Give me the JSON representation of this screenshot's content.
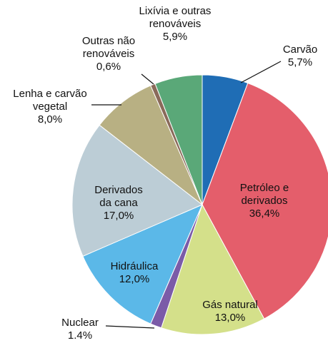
{
  "chart_data": {
    "type": "pie",
    "categories": [
      [
        "Carvão"
      ],
      [
        "Petróleo e",
        "derivados"
      ],
      [
        "Gás natural"
      ],
      [
        "Nuclear"
      ],
      [
        "Hidráulica"
      ],
      [
        "Derivados",
        "da cana"
      ],
      [
        "Lenha e carvão",
        "vegetal"
      ],
      [
        "Outras não",
        "renováveis"
      ],
      [
        "Lixívia e outras",
        "renováveis"
      ]
    ],
    "values": [
      5.7,
      36.4,
      13.0,
      1.4,
      12.0,
      17.0,
      8.0,
      0.6,
      5.9
    ],
    "value_labels": [
      "5,7%",
      "36,4%",
      "13,0%",
      "1.4%",
      "12,0%",
      "17,0%",
      "8,0%",
      "0,6%",
      "5,9%"
    ],
    "colors": [
      "#1f6db5",
      "#e45e6b",
      "#d4e08a",
      "#7b5ba8",
      "#5bb8e8",
      "#bccdd6",
      "#b8b083",
      "#8a6a5a",
      "#5aa878"
    ]
  }
}
